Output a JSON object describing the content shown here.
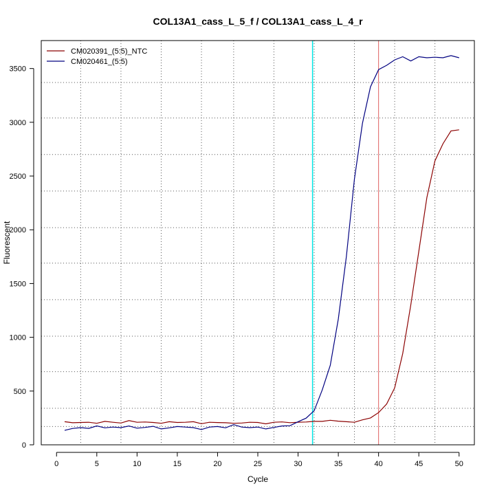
{
  "chart_data": {
    "type": "line",
    "title": "COL13A1_cass_L_5_f / COL13A1_cass_L_4_r",
    "xlabel": "Cycle",
    "ylabel": "Fluorescent",
    "xlim": [
      -1.9,
      51.9
    ],
    "ylim": [
      0,
      3760
    ],
    "x_ticks": [
      0,
      5,
      10,
      15,
      20,
      25,
      30,
      35,
      40,
      45,
      50
    ],
    "y_ticks": [
      0,
      500,
      1000,
      1500,
      2000,
      2500,
      3000,
      3500
    ],
    "grid": true,
    "grid_x": [
      3,
      8,
      13,
      18,
      22,
      27,
      32,
      37,
      42,
      47
    ],
    "grid_y": [
      170,
      340,
      680,
      1010,
      1350,
      1690,
      2020,
      2360,
      2700,
      3040,
      3370
    ],
    "threshold_line_x": 31.8,
    "red_vline_x": 40,
    "legend_position": "top-left",
    "x": [
      1,
      2,
      3,
      4,
      5,
      6,
      7,
      8,
      9,
      10,
      11,
      12,
      13,
      14,
      15,
      16,
      17,
      18,
      19,
      20,
      21,
      22,
      23,
      24,
      25,
      26,
      27,
      28,
      29,
      30,
      31,
      32,
      33,
      34,
      35,
      36,
      37,
      38,
      39,
      40,
      41,
      42,
      43,
      44,
      45,
      46,
      47,
      48,
      49,
      50
    ],
    "series": [
      {
        "name": "CM020391_(5:5)_NTC",
        "color": "#8b0000",
        "values": [
          215,
          205,
          208,
          210,
          200,
          218,
          210,
          203,
          225,
          210,
          212,
          208,
          200,
          215,
          208,
          210,
          215,
          196,
          210,
          207,
          205,
          200,
          203,
          210,
          208,
          195,
          210,
          213,
          206,
          210,
          212,
          218,
          218,
          228,
          220,
          215,
          210,
          232,
          250,
          300,
          380,
          530,
          850,
          1300,
          1800,
          2300,
          2640,
          2800,
          2920,
          2930
        ]
      },
      {
        "name": "CM020461_(5:5)",
        "color": "#000080",
        "values": [
          135,
          152,
          160,
          153,
          176,
          158,
          165,
          160,
          175,
          155,
          162,
          172,
          148,
          158,
          170,
          165,
          160,
          142,
          165,
          170,
          158,
          188,
          165,
          160,
          165,
          148,
          162,
          175,
          178,
          215,
          248,
          318,
          510,
          740,
          1170,
          1750,
          2470,
          2990,
          3330,
          3490,
          3530,
          3580,
          3610,
          3570,
          3610,
          3600,
          3605,
          3600,
          3620,
          3600
        ]
      }
    ]
  }
}
